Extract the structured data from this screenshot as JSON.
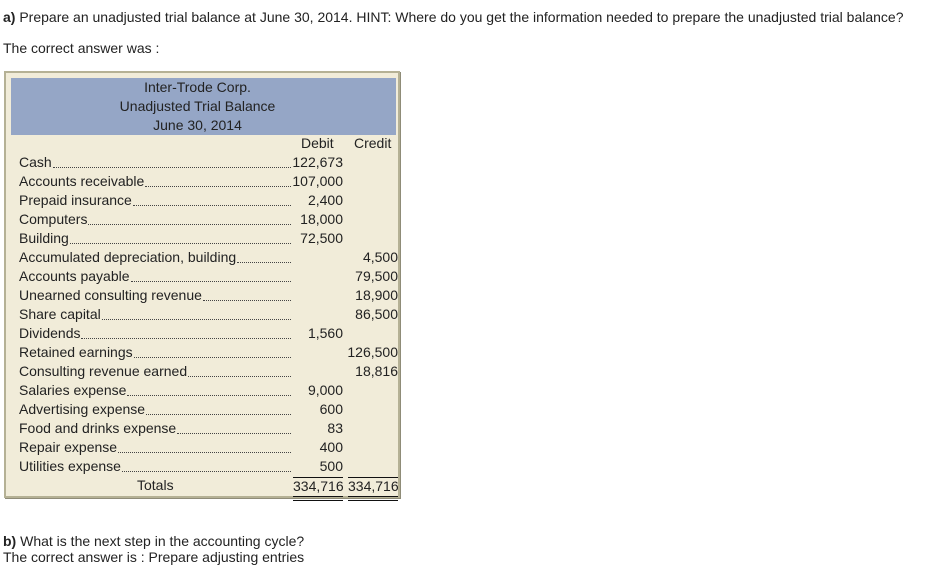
{
  "question_a": {
    "label": "a)",
    "text": " Prepare an unadjusted trial balance at June 30, 2014. HINT: Where do you get the information needed to prepare the unadjusted trial balance?"
  },
  "answer_a_intro": "The correct answer was :",
  "trial_balance": {
    "header": {
      "company": "Inter-Trode Corp.",
      "title": "Unadjusted Trial Balance",
      "date": "June 30, 2014"
    },
    "columns": {
      "debit": "Debit",
      "credit": "Credit"
    },
    "rows": [
      {
        "account": "Cash",
        "debit": "122,673",
        "credit": ""
      },
      {
        "account": "Accounts receivable",
        "debit": "107,000",
        "credit": ""
      },
      {
        "account": "Prepaid insurance",
        "debit": "2,400",
        "credit": ""
      },
      {
        "account": "Computers",
        "debit": "18,000",
        "credit": ""
      },
      {
        "account": "Building",
        "debit": "72,500",
        "credit": ""
      },
      {
        "account": "Accumulated depreciation, building",
        "debit": "",
        "credit": "4,500"
      },
      {
        "account": "Accounts payable",
        "debit": "",
        "credit": "79,500"
      },
      {
        "account": "Unearned consulting revenue",
        "debit": "",
        "credit": "18,900"
      },
      {
        "account": "Share capital",
        "debit": "",
        "credit": "86,500"
      },
      {
        "account": "Dividends",
        "debit": "1,560",
        "credit": ""
      },
      {
        "account": "Retained earnings",
        "debit": "",
        "credit": "126,500"
      },
      {
        "account": "Consulting revenue earned",
        "debit": "",
        "credit": "18,816"
      },
      {
        "account": "Salaries expense",
        "debit": "9,000",
        "credit": ""
      },
      {
        "account": "Advertising expense",
        "debit": "600",
        "credit": ""
      },
      {
        "account": "Food and drinks expense",
        "debit": "83",
        "credit": ""
      },
      {
        "account": "Repair expense",
        "debit": "400",
        "credit": ""
      },
      {
        "account": "Utilities expense",
        "debit": "500",
        "credit": ""
      }
    ],
    "totals": {
      "label": "Totals",
      "debit": "334,716",
      "credit": "334,716"
    }
  },
  "question_b": {
    "label": "b)",
    "text": " What is the next step in the accounting cycle?"
  },
  "answer_b": "The correct answer is : Prepare adjusting entries"
}
